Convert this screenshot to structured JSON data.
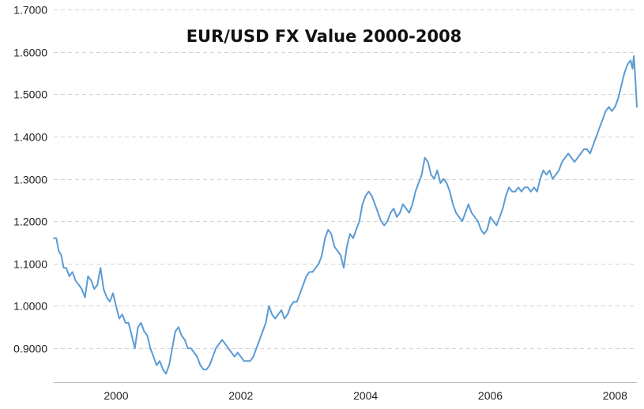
{
  "chart_data": {
    "type": "line",
    "title": "EUR/USD FX Value 2000-2008",
    "xlabel": "",
    "ylabel": "",
    "x_ticks": [
      "2000",
      "2002",
      "2004",
      "2006",
      "2008"
    ],
    "y_ticks": [
      "0.9000",
      "1.0000",
      "1.1000",
      "1.2000",
      "1.3000",
      "1.4000",
      "1.5000",
      "1.6000",
      "1.7000"
    ],
    "ylim": [
      0.82,
      1.7
    ],
    "xlim": [
      1999.0,
      2008.35
    ],
    "grid": true,
    "legend": "none",
    "series": [
      {
        "color": "#5b9bd5",
        "points": [
          [
            1999.0,
            1.16
          ],
          [
            1999.04,
            1.16
          ],
          [
            1999.08,
            1.13
          ],
          [
            1999.12,
            1.12
          ],
          [
            1999.16,
            1.09
          ],
          [
            1999.2,
            1.09
          ],
          [
            1999.25,
            1.07
          ],
          [
            1999.3,
            1.08
          ],
          [
            1999.35,
            1.06
          ],
          [
            1999.4,
            1.05
          ],
          [
            1999.45,
            1.04
          ],
          [
            1999.5,
            1.02
          ],
          [
            1999.55,
            1.07
          ],
          [
            1999.6,
            1.06
          ],
          [
            1999.65,
            1.04
          ],
          [
            1999.7,
            1.05
          ],
          [
            1999.75,
            1.09
          ],
          [
            1999.8,
            1.04
          ],
          [
            1999.85,
            1.02
          ],
          [
            1999.9,
            1.01
          ],
          [
            1999.95,
            1.03
          ],
          [
            2000.0,
            1.0
          ],
          [
            2000.05,
            0.97
          ],
          [
            2000.1,
            0.98
          ],
          [
            2000.15,
            0.96
          ],
          [
            2000.2,
            0.96
          ],
          [
            2000.25,
            0.93
          ],
          [
            2000.3,
            0.9
          ],
          [
            2000.35,
            0.95
          ],
          [
            2000.4,
            0.96
          ],
          [
            2000.45,
            0.94
          ],
          [
            2000.5,
            0.93
          ],
          [
            2000.55,
            0.9
          ],
          [
            2000.6,
            0.88
          ],
          [
            2000.65,
            0.86
          ],
          [
            2000.7,
            0.87
          ],
          [
            2000.75,
            0.85
          ],
          [
            2000.8,
            0.84
          ],
          [
            2000.85,
            0.86
          ],
          [
            2000.9,
            0.9
          ],
          [
            2000.95,
            0.94
          ],
          [
            2001.0,
            0.95
          ],
          [
            2001.05,
            0.93
          ],
          [
            2001.1,
            0.92
          ],
          [
            2001.15,
            0.9
          ],
          [
            2001.2,
            0.9
          ],
          [
            2001.25,
            0.89
          ],
          [
            2001.3,
            0.88
          ],
          [
            2001.35,
            0.86
          ],
          [
            2001.4,
            0.85
          ],
          [
            2001.45,
            0.85
          ],
          [
            2001.5,
            0.86
          ],
          [
            2001.55,
            0.88
          ],
          [
            2001.6,
            0.9
          ],
          [
            2001.65,
            0.91
          ],
          [
            2001.7,
            0.92
          ],
          [
            2001.75,
            0.91
          ],
          [
            2001.8,
            0.9
          ],
          [
            2001.85,
            0.89
          ],
          [
            2001.9,
            0.88
          ],
          [
            2001.95,
            0.89
          ],
          [
            2002.0,
            0.88
          ],
          [
            2002.05,
            0.87
          ],
          [
            2002.1,
            0.87
          ],
          [
            2002.15,
            0.87
          ],
          [
            2002.2,
            0.88
          ],
          [
            2002.25,
            0.9
          ],
          [
            2002.3,
            0.92
          ],
          [
            2002.35,
            0.94
          ],
          [
            2002.4,
            0.96
          ],
          [
            2002.45,
            1.0
          ],
          [
            2002.5,
            0.98
          ],
          [
            2002.55,
            0.97
          ],
          [
            2002.6,
            0.98
          ],
          [
            2002.65,
            0.99
          ],
          [
            2002.7,
            0.97
          ],
          [
            2002.75,
            0.98
          ],
          [
            2002.8,
            1.0
          ],
          [
            2002.85,
            1.01
          ],
          [
            2002.9,
            1.01
          ],
          [
            2002.95,
            1.03
          ],
          [
            2003.0,
            1.05
          ],
          [
            2003.05,
            1.07
          ],
          [
            2003.1,
            1.08
          ],
          [
            2003.15,
            1.08
          ],
          [
            2003.2,
            1.09
          ],
          [
            2003.25,
            1.1
          ],
          [
            2003.3,
            1.12
          ],
          [
            2003.35,
            1.16
          ],
          [
            2003.4,
            1.18
          ],
          [
            2003.45,
            1.17
          ],
          [
            2003.5,
            1.14
          ],
          [
            2003.55,
            1.13
          ],
          [
            2003.6,
            1.12
          ],
          [
            2003.65,
            1.09
          ],
          [
            2003.7,
            1.14
          ],
          [
            2003.75,
            1.17
          ],
          [
            2003.8,
            1.16
          ],
          [
            2003.85,
            1.18
          ],
          [
            2003.9,
            1.2
          ],
          [
            2003.95,
            1.24
          ],
          [
            2004.0,
            1.26
          ],
          [
            2004.05,
            1.27
          ],
          [
            2004.1,
            1.26
          ],
          [
            2004.15,
            1.24
          ],
          [
            2004.2,
            1.22
          ],
          [
            2004.25,
            1.2
          ],
          [
            2004.3,
            1.19
          ],
          [
            2004.35,
            1.2
          ],
          [
            2004.4,
            1.22
          ],
          [
            2004.45,
            1.23
          ],
          [
            2004.5,
            1.21
          ],
          [
            2004.55,
            1.22
          ],
          [
            2004.6,
            1.24
          ],
          [
            2004.65,
            1.23
          ],
          [
            2004.7,
            1.22
          ],
          [
            2004.75,
            1.24
          ],
          [
            2004.8,
            1.27
          ],
          [
            2004.85,
            1.29
          ],
          [
            2004.9,
            1.31
          ],
          [
            2004.95,
            1.35
          ],
          [
            2005.0,
            1.34
          ],
          [
            2005.05,
            1.31
          ],
          [
            2005.1,
            1.3
          ],
          [
            2005.15,
            1.32
          ],
          [
            2005.2,
            1.29
          ],
          [
            2005.25,
            1.3
          ],
          [
            2005.3,
            1.29
          ],
          [
            2005.35,
            1.27
          ],
          [
            2005.4,
            1.24
          ],
          [
            2005.45,
            1.22
          ],
          [
            2005.5,
            1.21
          ],
          [
            2005.55,
            1.2
          ],
          [
            2005.6,
            1.22
          ],
          [
            2005.65,
            1.24
          ],
          [
            2005.7,
            1.22
          ],
          [
            2005.75,
            1.21
          ],
          [
            2005.8,
            1.2
          ],
          [
            2005.85,
            1.18
          ],
          [
            2005.9,
            1.17
          ],
          [
            2005.95,
            1.18
          ],
          [
            2006.0,
            1.21
          ],
          [
            2006.05,
            1.2
          ],
          [
            2006.1,
            1.19
          ],
          [
            2006.15,
            1.21
          ],
          [
            2006.2,
            1.23
          ],
          [
            2006.25,
            1.26
          ],
          [
            2006.3,
            1.28
          ],
          [
            2006.35,
            1.27
          ],
          [
            2006.4,
            1.27
          ],
          [
            2006.45,
            1.28
          ],
          [
            2006.5,
            1.27
          ],
          [
            2006.55,
            1.28
          ],
          [
            2006.6,
            1.28
          ],
          [
            2006.65,
            1.27
          ],
          [
            2006.7,
            1.28
          ],
          [
            2006.75,
            1.27
          ],
          [
            2006.8,
            1.3
          ],
          [
            2006.85,
            1.32
          ],
          [
            2006.9,
            1.31
          ],
          [
            2006.95,
            1.32
          ],
          [
            2007.0,
            1.3
          ],
          [
            2007.05,
            1.31
          ],
          [
            2007.1,
            1.32
          ],
          [
            2007.15,
            1.34
          ],
          [
            2007.2,
            1.35
          ],
          [
            2007.25,
            1.36
          ],
          [
            2007.3,
            1.35
          ],
          [
            2007.35,
            1.34
          ],
          [
            2007.4,
            1.35
          ],
          [
            2007.45,
            1.36
          ],
          [
            2007.5,
            1.37
          ],
          [
            2007.55,
            1.37
          ],
          [
            2007.6,
            1.36
          ],
          [
            2007.65,
            1.38
          ],
          [
            2007.7,
            1.4
          ],
          [
            2007.75,
            1.42
          ],
          [
            2007.8,
            1.44
          ],
          [
            2007.85,
            1.46
          ],
          [
            2007.9,
            1.47
          ],
          [
            2007.95,
            1.46
          ],
          [
            2008.0,
            1.47
          ],
          [
            2008.05,
            1.49
          ],
          [
            2008.1,
            1.52
          ],
          [
            2008.15,
            1.55
          ],
          [
            2008.2,
            1.57
          ],
          [
            2008.25,
            1.58
          ],
          [
            2008.28,
            1.56
          ],
          [
            2008.3,
            1.59
          ],
          [
            2008.32,
            1.55
          ],
          [
            2008.35,
            1.47
          ]
        ]
      }
    ]
  }
}
